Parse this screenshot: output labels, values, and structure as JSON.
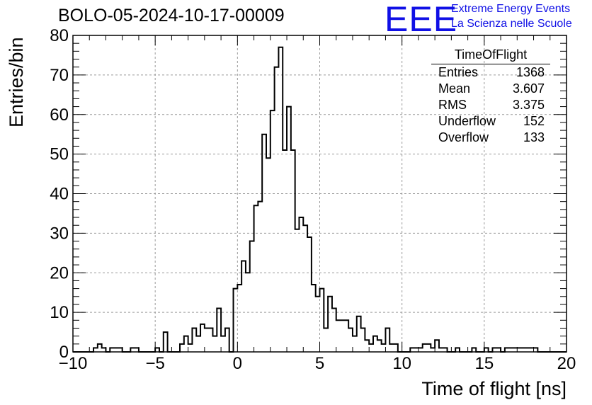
{
  "header": {
    "run_title": "BOLO-05-2024-10-17-00009",
    "logo_letters": "EEE",
    "logo_line1": "Extreme Energy Events",
    "logo_line2": "La Scienza nelle Scuole"
  },
  "stats_box": {
    "name": "TimeOfFlight",
    "rows": [
      {
        "label": "Entries",
        "value": "1368"
      },
      {
        "label": "Mean",
        "value": "3.607"
      },
      {
        "label": "RMS",
        "value": "3.375"
      },
      {
        "label": "Underflow",
        "value": "152"
      },
      {
        "label": "Overflow",
        "value": "133"
      }
    ]
  },
  "chart_data": {
    "type": "bar",
    "title": "BOLO-05-2024-10-17-00009",
    "xlabel": "Time of flight [ns]",
    "ylabel": "Entries/bin",
    "xlim": [
      -10,
      20
    ],
    "ylim": [
      0,
      80
    ],
    "grid": true,
    "x_ticks": [
      -10,
      -5,
      0,
      5,
      10,
      15,
      20
    ],
    "y_ticks": [
      0,
      10,
      20,
      30,
      40,
      50,
      60,
      70,
      80
    ],
    "bin_width": 0.25,
    "bin_start": -10,
    "values": [
      0,
      0,
      0,
      0,
      0,
      1,
      2,
      1,
      0,
      1,
      1,
      1,
      0,
      0,
      1,
      1,
      0,
      0,
      0,
      0,
      1,
      0,
      5,
      0,
      0,
      0,
      2,
      4,
      2,
      6,
      4,
      7,
      6,
      6,
      4,
      11,
      4,
      6,
      0,
      16,
      17,
      23,
      20,
      28,
      37,
      38,
      55,
      49,
      61,
      72,
      77,
      51,
      62,
      51,
      31,
      34,
      32,
      29,
      17,
      14,
      16,
      6,
      14,
      11,
      8,
      8,
      8,
      6,
      4,
      9,
      6,
      3,
      2,
      4,
      3,
      2,
      6,
      2,
      2,
      0,
      0,
      0,
      1,
      1,
      1,
      2,
      2,
      1,
      3,
      1,
      1,
      0,
      0,
      1,
      0,
      0,
      0,
      1,
      0,
      0,
      1,
      0,
      1,
      1,
      0,
      1,
      1,
      1,
      1,
      1,
      1,
      1,
      1,
      0,
      0,
      0,
      0,
      0,
      0,
      0
    ]
  }
}
